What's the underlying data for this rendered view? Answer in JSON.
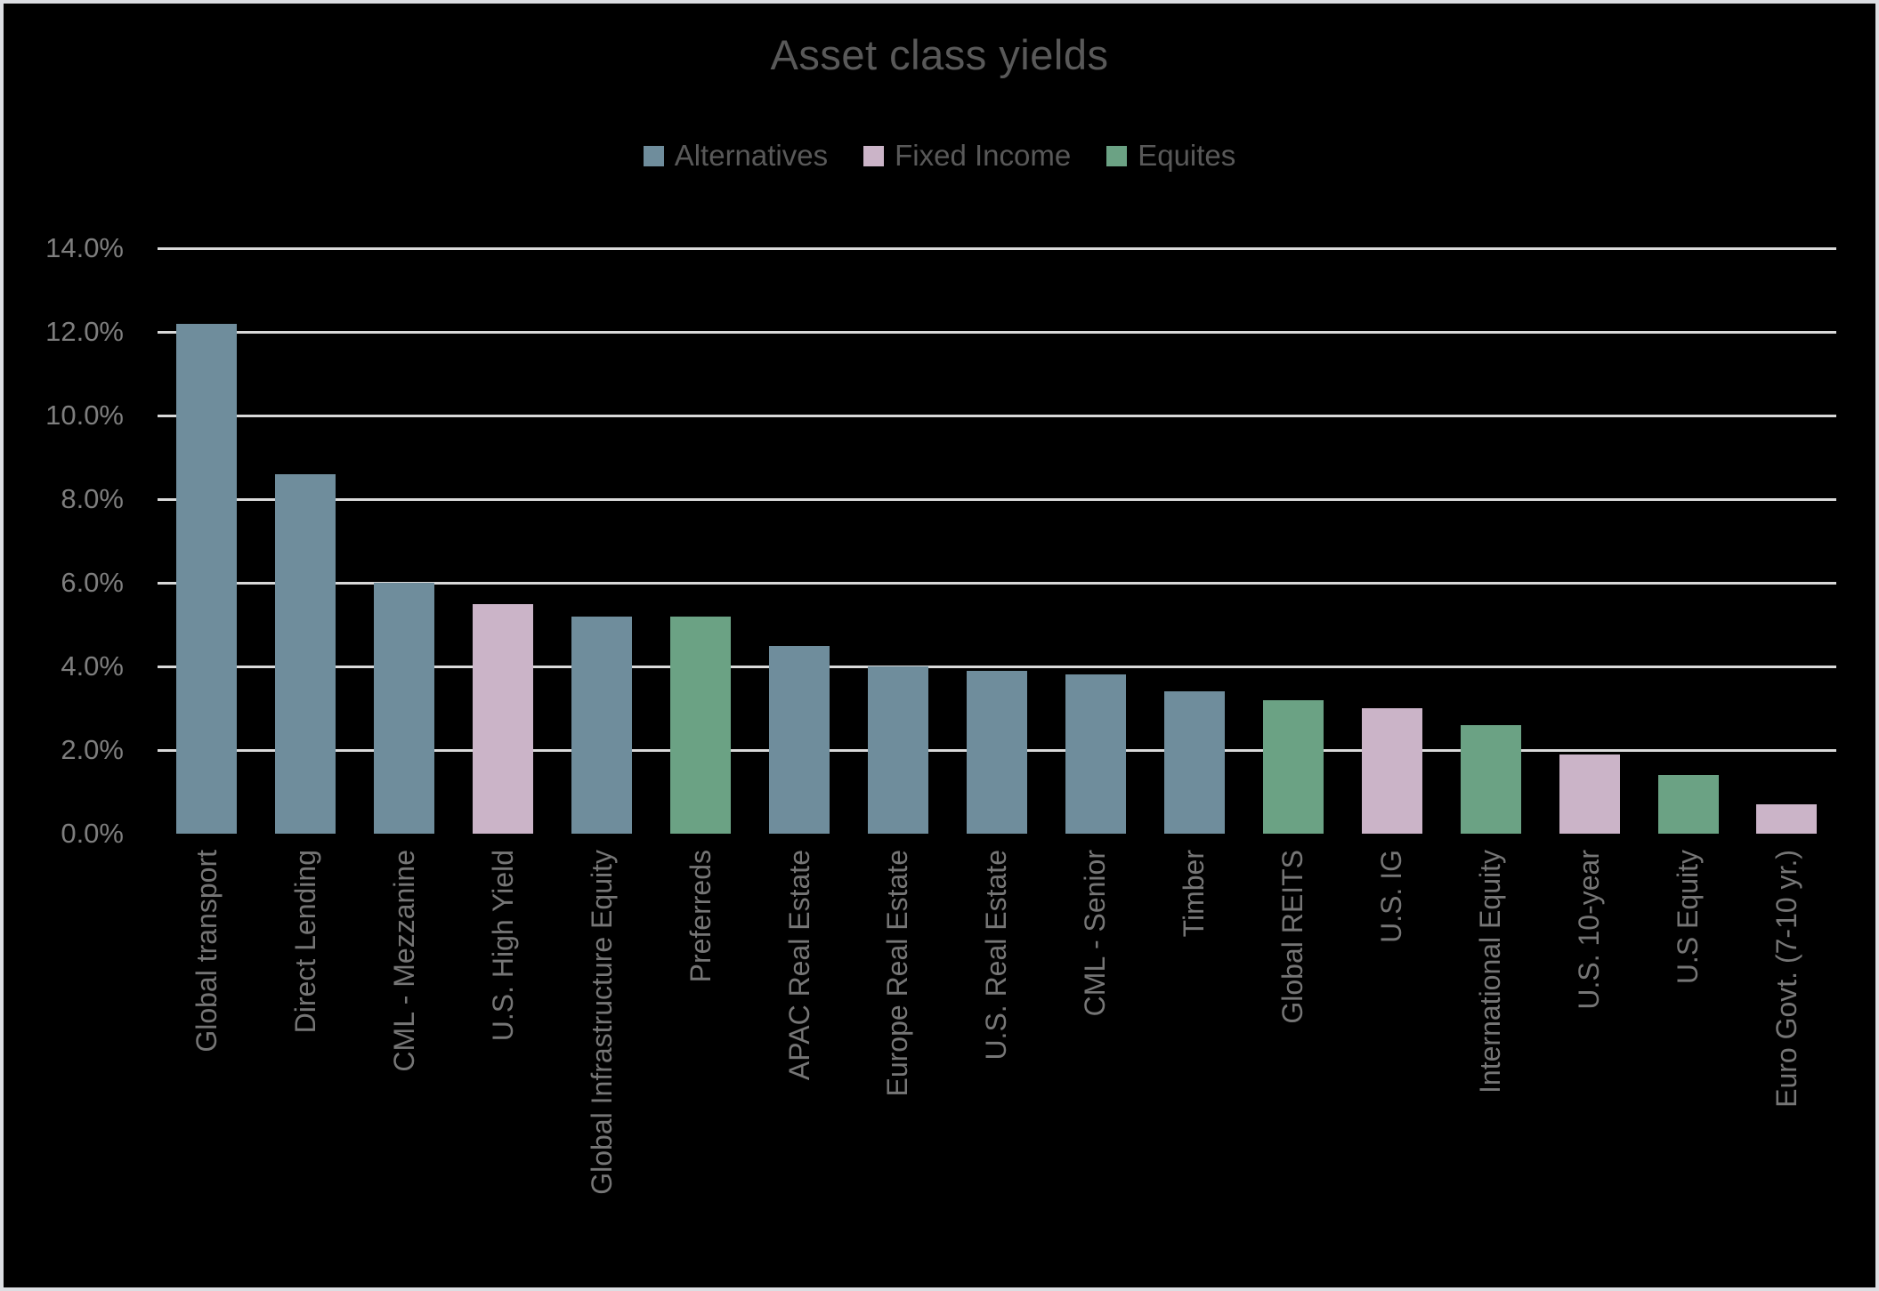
{
  "title": "Asset class yields",
  "colors": {
    "background": "#000000",
    "page_border": "#dcdee2",
    "gridline": "#d9d9d9",
    "title_text": "#595959",
    "legend_text": "#595959",
    "axis_text": "#7e7e7e",
    "alternatives": "#6f8d9c",
    "fixed_income": "#cbb4c8",
    "equites": "#6ba284"
  },
  "chart_data": {
    "type": "bar",
    "title": "Asset class yields",
    "xlabel": "",
    "ylabel": "",
    "ylim": [
      0,
      14
    ],
    "ytick_step": 2,
    "ytick_labels": [
      "0.0%",
      "2.0%",
      "4.0%",
      "6.0%",
      "8.0%",
      "10.0%",
      "12.0%",
      "14.0%"
    ],
    "grid": true,
    "legend_position": "top",
    "legend": [
      "Alternatives",
      "Fixed Income",
      "Equites"
    ],
    "group_colors": {
      "Alternatives": "#6f8d9c",
      "Fixed Income": "#cbb4c8",
      "Equites": "#6ba284"
    },
    "categories": [
      "Global transport",
      "Direct Lending",
      "CML - Mezzanine",
      "U.S. High Yield",
      "Global Infrastructure Equity",
      "Preferreds",
      "APAC Real Estate",
      "Europe Real Estate",
      "U.S. Real Estate",
      "CML - Senior",
      "Timber",
      "Global REITS",
      "U.S. IG",
      "International Equity",
      "U.S. 10-year",
      "U.S Equity",
      "Euro Govt. (7-10 yr.)"
    ],
    "values": [
      12.2,
      8.6,
      6.0,
      5.5,
      5.2,
      5.2,
      4.5,
      4.0,
      3.9,
      3.8,
      3.4,
      3.2,
      3.0,
      2.6,
      1.9,
      1.4,
      0.7
    ],
    "bar_groups": [
      "Alternatives",
      "Alternatives",
      "Alternatives",
      "Fixed Income",
      "Alternatives",
      "Equites",
      "Alternatives",
      "Alternatives",
      "Alternatives",
      "Alternatives",
      "Alternatives",
      "Equites",
      "Fixed Income",
      "Equites",
      "Fixed Income",
      "Equites",
      "Fixed Income"
    ]
  }
}
